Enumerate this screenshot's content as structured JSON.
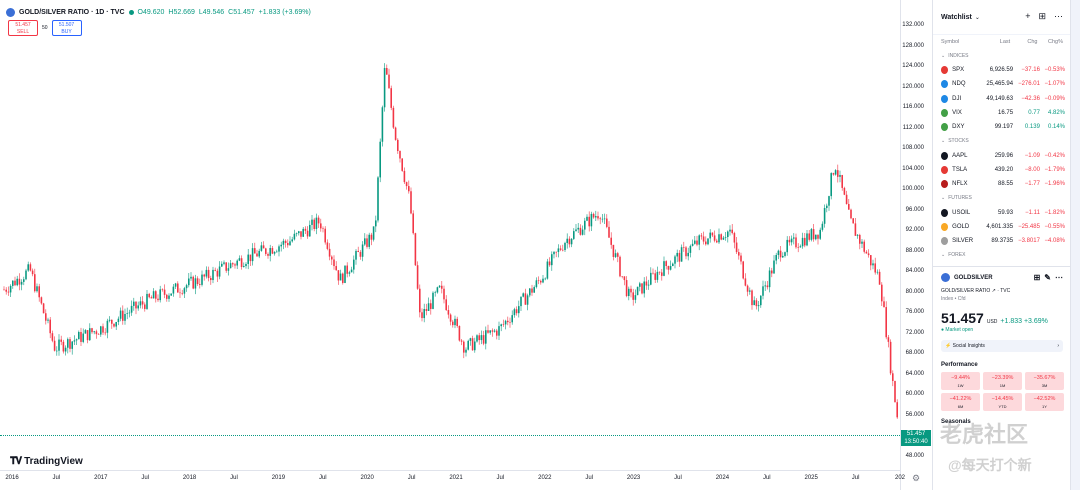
{
  "legend": {
    "symbol": "GOLD/SILVER RATIO · 1D · TVC",
    "open": "O49.620",
    "high": "H52.669",
    "low": "L49.546",
    "close": "C51.457",
    "change": "+1.833 (+3.69%)"
  },
  "trade": {
    "sell_price": "51.457",
    "sell_label": "SELL",
    "spread": "50",
    "buy_price": "51.507",
    "buy_label": "BUY"
  },
  "yaxis": [
    "132.000",
    "128.000",
    "124.000",
    "120.000",
    "116.000",
    "112.000",
    "108.000",
    "104.000",
    "100.000",
    "96.000",
    "92.000",
    "88.000",
    "84.000",
    "80.000",
    "76.000",
    "72.000",
    "68.000",
    "64.000",
    "60.000",
    "56.000",
    "52.000",
    "48.000"
  ],
  "xaxis": [
    "2016",
    "Jul",
    "2017",
    "Jul",
    "2018",
    "Jul",
    "2019",
    "Jul",
    "2020",
    "Jul",
    "2021",
    "Jul",
    "2022",
    "Jul",
    "2023",
    "Jul",
    "2024",
    "Jul",
    "2025",
    "Jul",
    "202"
  ],
  "price_tag": {
    "price": "51.457",
    "time": "13:50:40"
  },
  "brand": "TradingView",
  "watchlist": {
    "title": "Watchlist",
    "columns": {
      "symbol": "Symbol",
      "last": "Last",
      "chg": "Chg",
      "pct": "Chg%"
    },
    "sections": [
      {
        "name": "INDICES",
        "rows": [
          {
            "sym": "SPX",
            "last": "6,926.59",
            "chg": "−37.16",
            "pct": "−0.53%",
            "color": "#e53935",
            "dir": "neg"
          },
          {
            "sym": "NDQ",
            "last": "25,465.94",
            "chg": "−276.01",
            "pct": "−1.07%",
            "color": "#1e88e5",
            "dir": "neg"
          },
          {
            "sym": "DJI",
            "last": "49,149.63",
            "chg": "−42.36",
            "pct": "−0.09%",
            "color": "#1e88e5",
            "dir": "neg"
          },
          {
            "sym": "VIX",
            "last": "16.75",
            "chg": "0.77",
            "pct": "4.82%",
            "color": "#43a047",
            "dir": "pos"
          },
          {
            "sym": "DXY",
            "last": "99.197",
            "chg": "0.139",
            "pct": "0.14%",
            "color": "#43a047",
            "dir": "pos"
          }
        ]
      },
      {
        "name": "STOCKS",
        "rows": [
          {
            "sym": "AAPL",
            "last": "259.96",
            "chg": "−1.09",
            "pct": "−0.42%",
            "color": "#131722",
            "dir": "neg"
          },
          {
            "sym": "TSLA",
            "last": "439.20",
            "chg": "−8.00",
            "pct": "−1.79%",
            "color": "#e53935",
            "dir": "neg"
          },
          {
            "sym": "NFLX",
            "last": "88.55",
            "chg": "−1.77",
            "pct": "−1.96%",
            "color": "#b71c1c",
            "dir": "neg"
          }
        ]
      },
      {
        "name": "FUTURES",
        "rows": [
          {
            "sym": "USOIL",
            "last": "59.93",
            "chg": "−1.11",
            "pct": "−1.82%",
            "color": "#131722",
            "dir": "neg"
          },
          {
            "sym": "GOLD",
            "last": "4,601.335",
            "chg": "−25.485",
            "pct": "−0.55%",
            "color": "#f9a825",
            "dir": "neg"
          },
          {
            "sym": "SILVER",
            "last": "89.3735",
            "chg": "−3.8017",
            "pct": "−4.08%",
            "color": "#9e9e9e",
            "dir": "neg"
          }
        ]
      },
      {
        "name": "FOREX",
        "rows": []
      }
    ]
  },
  "detail": {
    "symbol": "GOLDSILVER",
    "name": "GOLD/SILVER RATIO",
    "exchange": "TVC",
    "type": "Index • Cfd",
    "price": "51.457",
    "currency": "USD",
    "change": "+1.833 +3.69%",
    "status": "Market open",
    "social": "Social Insights",
    "performance_title": "Performance",
    "performance": [
      {
        "value": "−9.44%",
        "period": "1W"
      },
      {
        "value": "−23.39%",
        "period": "1M"
      },
      {
        "value": "−35.67%",
        "period": "3M"
      },
      {
        "value": "−41.22%",
        "period": "6M"
      },
      {
        "value": "−14.45%",
        "period": "YTD"
      },
      {
        "value": "−42.52%",
        "period": "1Y"
      }
    ],
    "seasonals": "Seasonals"
  },
  "watermark": {
    "line1": "老虎社区",
    "line2": "@每天打个新"
  }
}
